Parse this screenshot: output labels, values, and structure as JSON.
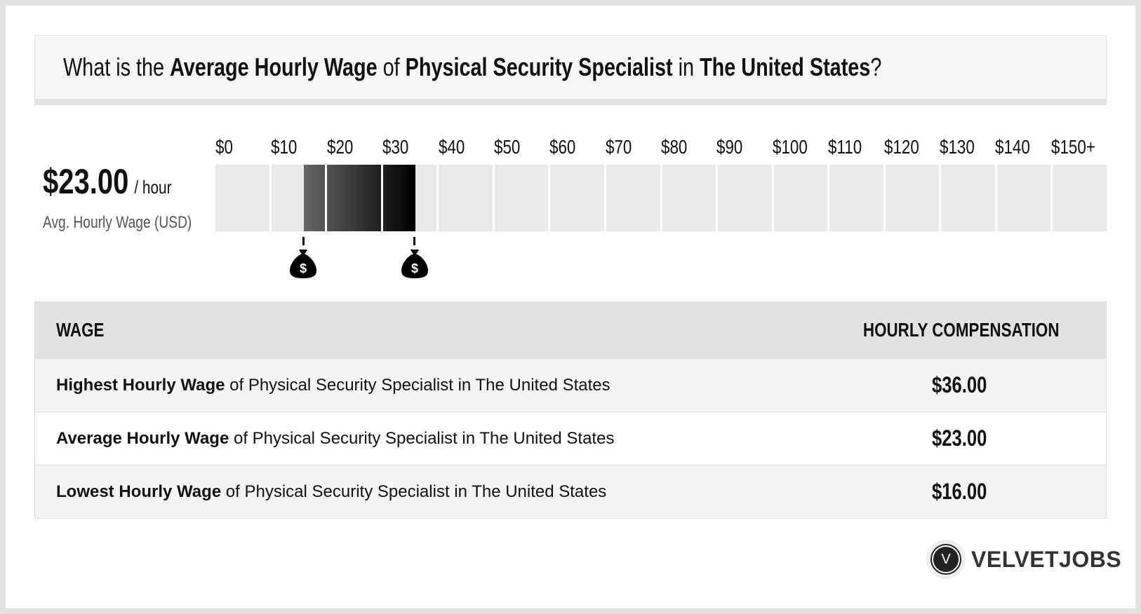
{
  "title": {
    "p1": "What is the ",
    "b1": "Average Hourly Wage",
    "p2": " of ",
    "b2": "Physical Security Specialist",
    "p3": " in ",
    "b3": "The United States",
    "p4": "?"
  },
  "summary": {
    "value": "$23.00",
    "unit": "/ hour",
    "label": "Avg. Hourly Wage (USD)"
  },
  "chart_data": {
    "type": "range-bar",
    "tick_labels": [
      "$0",
      "$10",
      "$20",
      "$30",
      "$40",
      "$50",
      "$60",
      "$70",
      "$80",
      "$90",
      "$100",
      "$110",
      "$120",
      "$130",
      "$140",
      "$150+"
    ],
    "xlim": [
      0,
      150
    ],
    "range": {
      "low": 16,
      "high": 36,
      "average": 23
    },
    "fill_colors": [
      "#666666",
      "#000000"
    ],
    "background_color": "#e8e8e8",
    "markers": [
      {
        "value": 16,
        "icon": "money-bag-icon"
      },
      {
        "value": 36,
        "icon": "money-bag-icon"
      }
    ]
  },
  "table": {
    "headers": [
      "WAGE",
      "HOURLY COMPENSATION"
    ],
    "rows": [
      {
        "bold": "Highest Hourly Wage",
        "rest": " of Physical Security Specialist in The United States",
        "value": "$36.00"
      },
      {
        "bold": "Average Hourly Wage",
        "rest": " of Physical Security Specialist in The United States",
        "value": "$23.00"
      },
      {
        "bold": "Lowest Hourly Wage",
        "rest": " of Physical Security Specialist in The United States",
        "value": "$16.00"
      }
    ]
  },
  "logo": {
    "letter": "V",
    "text": "VELVETJOBS"
  }
}
